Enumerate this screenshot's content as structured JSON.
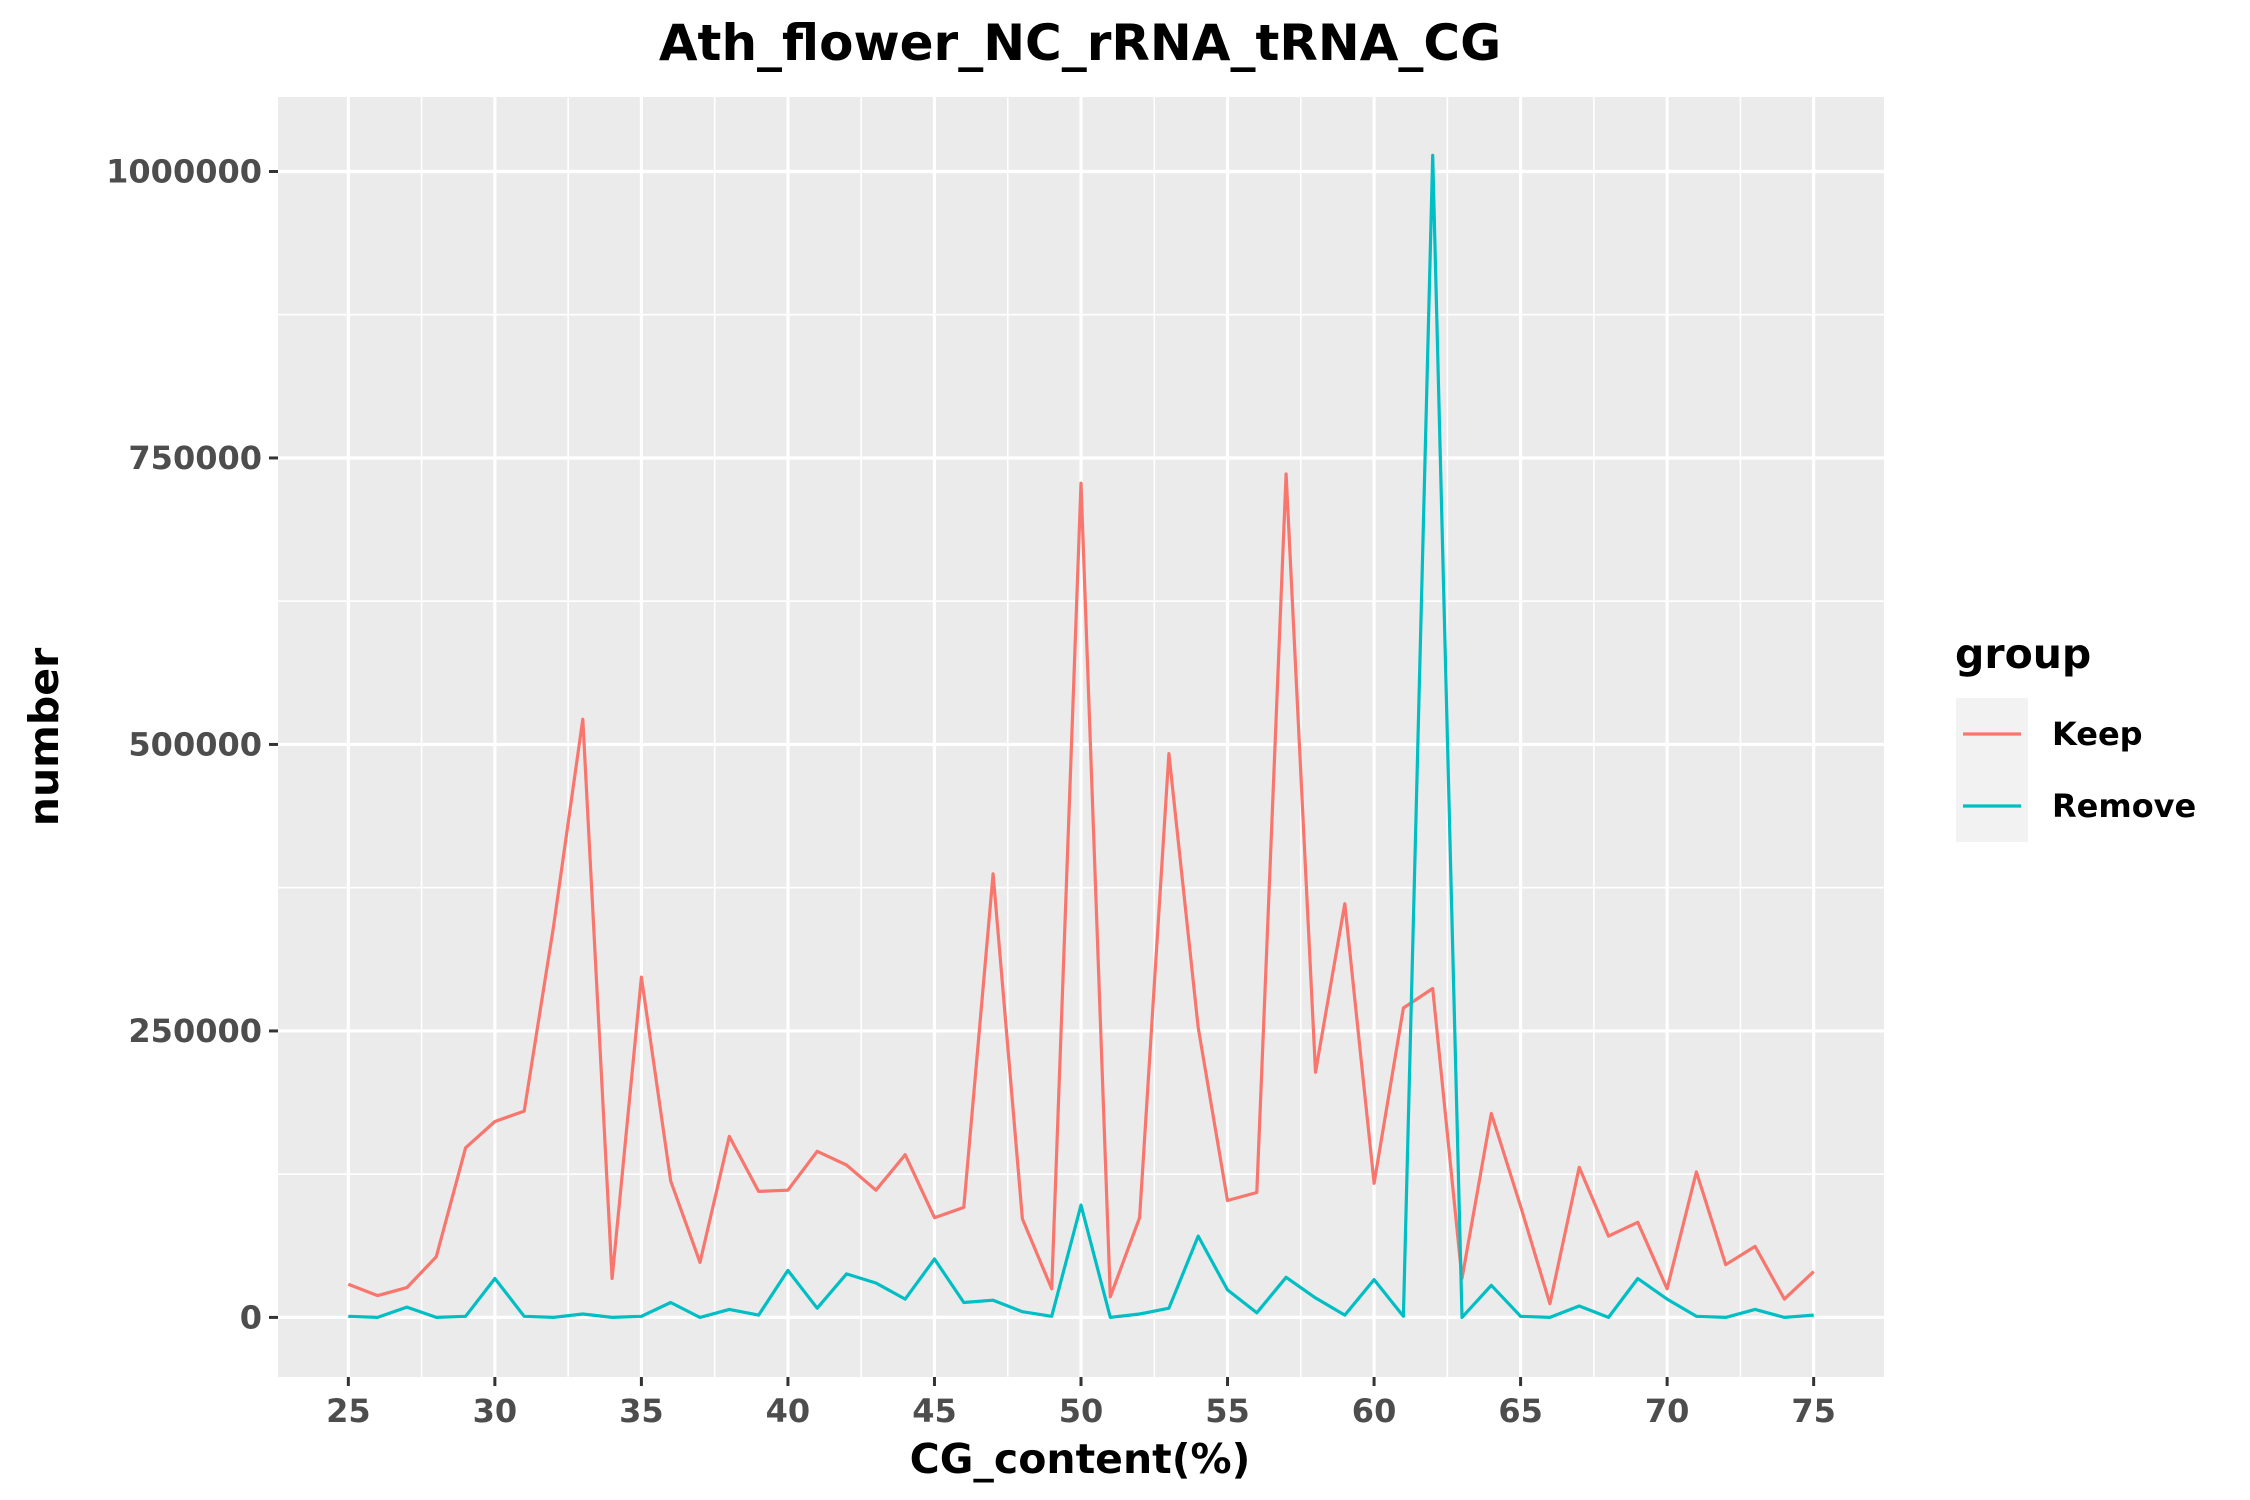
{
  "chart_data": {
    "type": "line",
    "title": "Ath_flower_NC_rRNA_tRNA_CG",
    "xlabel": "CG_content(%)",
    "ylabel": "number",
    "xlim": [
      22.6,
      77.4
    ],
    "ylim": [
      -52000,
      1065000
    ],
    "x_ticks": [
      25,
      30,
      35,
      40,
      45,
      50,
      55,
      60,
      65,
      70,
      75
    ],
    "y_ticks": [
      0,
      250000,
      500000,
      750000,
      1000000
    ],
    "y_tick_labels": [
      "0",
      "250000",
      "500000",
      "750000",
      "1000000"
    ],
    "grid": true,
    "legend": {
      "title": "group",
      "position": "right"
    },
    "x": [
      25,
      26,
      27,
      28,
      29,
      30,
      31,
      32,
      33,
      34,
      35,
      36,
      37,
      38,
      39,
      40,
      41,
      42,
      43,
      44,
      45,
      46,
      47,
      48,
      49,
      50,
      51,
      52,
      53,
      54,
      55,
      56,
      57,
      58,
      59,
      60,
      61,
      62,
      63,
      64,
      65,
      66,
      67,
      68,
      69,
      70,
      71,
      72,
      73,
      74,
      75
    ],
    "series": [
      {
        "name": "Keep",
        "color": "#f8766d",
        "values": [
          29000,
          19000,
          26000,
          53000,
          148000,
          171000,
          180000,
          341000,
          522000,
          34000,
          297000,
          119000,
          48000,
          158000,
          110000,
          111000,
          145000,
          133000,
          111000,
          142000,
          87000,
          96000,
          387000,
          86000,
          25000,
          728000,
          18000,
          87000,
          492000,
          253000,
          102000,
          109000,
          736000,
          214000,
          361000,
          117000,
          270000,
          287000,
          34000,
          178000,
          97000,
          12000,
          131000,
          71000,
          83000,
          25000,
          127000,
          46000,
          62000,
          16000,
          40000
        ]
      },
      {
        "name": "Remove",
        "color": "#00bfc4",
        "values": [
          1000,
          0,
          9000,
          0,
          1000,
          34000,
          1000,
          0,
          3000,
          0,
          1000,
          13000,
          0,
          7000,
          2000,
          41000,
          8000,
          38000,
          30000,
          16000,
          51000,
          13000,
          15000,
          5000,
          1000,
          98000,
          0,
          3000,
          8000,
          71000,
          24000,
          4000,
          35000,
          17000,
          2000,
          33000,
          1000,
          1014000,
          0,
          28000,
          1000,
          0,
          10000,
          0,
          34000,
          16000,
          1000,
          0,
          7000,
          0,
          2000
        ]
      }
    ]
  }
}
